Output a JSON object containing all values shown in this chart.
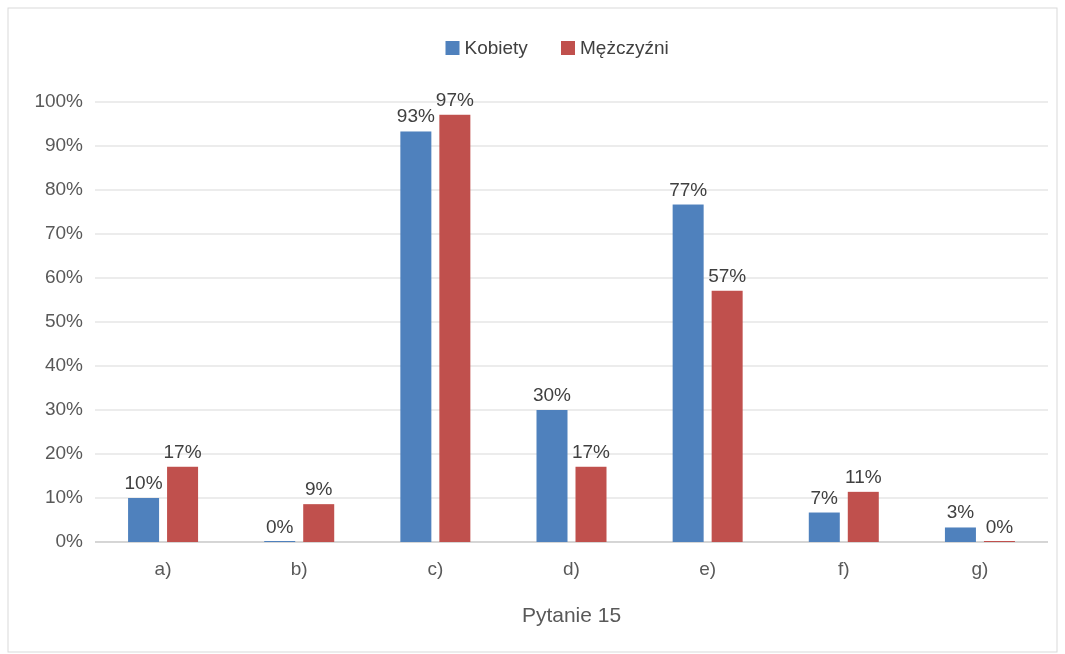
{
  "chart_data": {
    "type": "bar",
    "xlabel": "Pytanie 15",
    "categories": [
      "a)",
      "b)",
      "c)",
      "d)",
      "e)",
      "f)",
      "g)"
    ],
    "series": [
      {
        "name": "Kobiety",
        "color": "#4f81bd",
        "values": [
          10,
          0,
          93.3,
          30,
          76.7,
          6.7,
          3.3
        ],
        "value_labels": [
          "10%",
          "0%",
          "93%",
          "30%",
          "77%",
          "7%",
          "3%"
        ]
      },
      {
        "name": "Mężczyźni",
        "color": "#c0504d",
        "values": [
          17.1,
          8.6,
          97.1,
          17.1,
          57.1,
          11.4,
          0
        ],
        "value_labels": [
          "17%",
          "9%",
          "97%",
          "17%",
          "57%",
          "11%",
          "0%"
        ]
      }
    ],
    "ylim": [
      0,
      100
    ],
    "yticks": [
      {
        "value": 0,
        "label": "0%"
      },
      {
        "value": 10,
        "label": "10%"
      },
      {
        "value": 20,
        "label": "20%"
      },
      {
        "value": 30,
        "label": "30%"
      },
      {
        "value": 40,
        "label": "40%"
      },
      {
        "value": 50,
        "label": "50%"
      },
      {
        "value": 60,
        "label": "60%"
      },
      {
        "value": 70,
        "label": "70%"
      },
      {
        "value": 80,
        "label": "80%"
      },
      {
        "value": 90,
        "label": "90%"
      },
      {
        "value": 100,
        "label": "100%"
      }
    ],
    "grid": "y",
    "legend": "top"
  }
}
